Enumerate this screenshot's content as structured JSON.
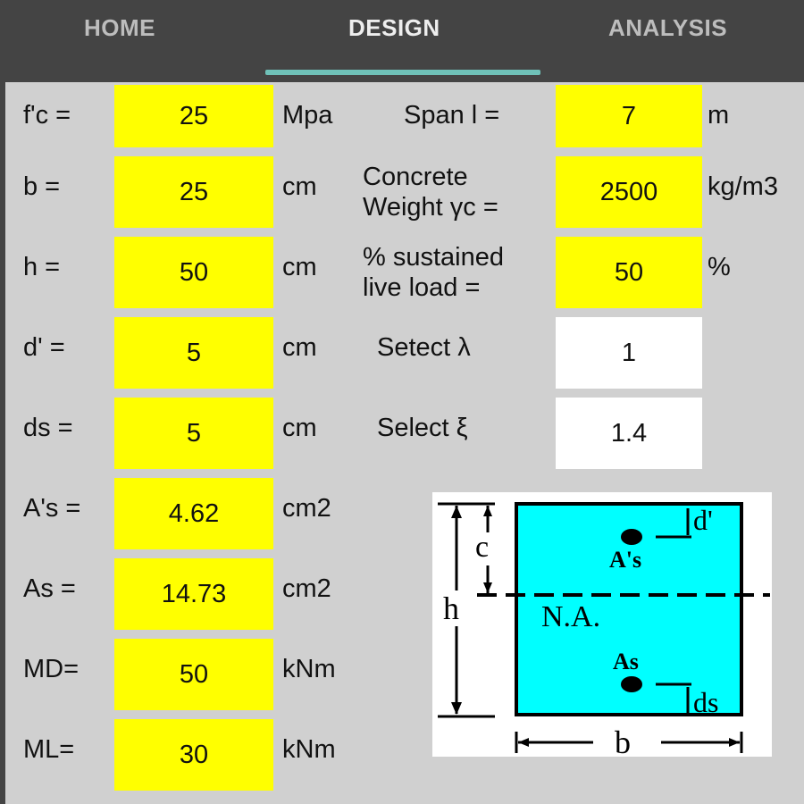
{
  "tabs": [
    {
      "label": "HOME"
    },
    {
      "label": "DESIGN",
      "active": true
    },
    {
      "label": "ANALYSIS"
    }
  ],
  "left": [
    {
      "label": "f'c =",
      "value": "25",
      "unit": "Mpa"
    },
    {
      "label": "b   =",
      "value": "25",
      "unit": "cm"
    },
    {
      "label": "h =",
      "value": "50",
      "unit": "cm"
    },
    {
      "label": "d' =",
      "value": "5",
      "unit": "cm"
    },
    {
      "label": "ds =",
      "value": "5",
      "unit": "cm"
    },
    {
      "label": "A's =",
      "value": "4.62",
      "unit": "cm2"
    },
    {
      "label": "As =",
      "value": "14.73",
      "unit": "cm2"
    },
    {
      "label": "MD=",
      "value": "50",
      "unit": "kNm"
    },
    {
      "label": "ML=",
      "value": "30",
      "unit": "kNm"
    }
  ],
  "right": [
    {
      "label1": "Span l  =",
      "label2": "",
      "value": "7",
      "unit": "m"
    },
    {
      "label1": "Concrete",
      "label2": "Weight γc =",
      "value": "2500",
      "unit": "kg/m3"
    },
    {
      "label1": "% sustained",
      "label2": "live load =",
      "value": "50",
      "unit": "%"
    },
    {
      "label1": "Setect λ",
      "label2": "",
      "value": "1",
      "unit": ""
    },
    {
      "label1": "Select ξ",
      "label2": "",
      "value": "1.4",
      "unit": ""
    }
  ],
  "diagram": {
    "c": "c",
    "h": "h",
    "d_prime": "d'",
    "As_prime": "A's",
    "na": "N.A.",
    "As": "As",
    "ds": "ds",
    "b": "b"
  },
  "colors": {
    "input": "#ffff00",
    "section": "#00ffff",
    "indicator": "#6fc1b8"
  }
}
